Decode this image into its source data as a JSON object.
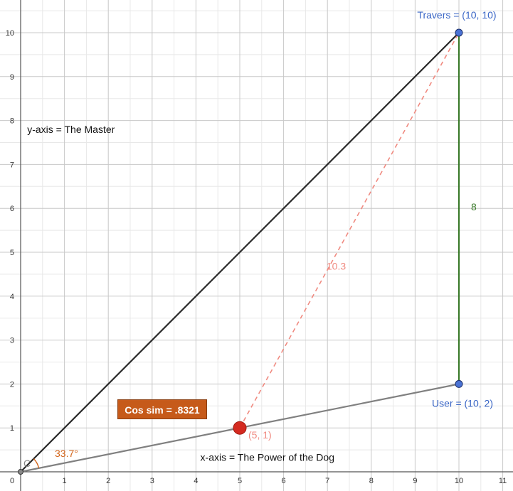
{
  "chart_data": {
    "type": "scatter",
    "xlim": [
      0,
      11
    ],
    "ylim": [
      0,
      10.5
    ],
    "grid": true,
    "x_ticks": [
      "0",
      "1",
      "2",
      "3",
      "4",
      "5",
      "6",
      "7",
      "8",
      "9",
      "10",
      "11"
    ],
    "y_ticks": [
      "1",
      "2",
      "3",
      "4",
      "5",
      "6",
      "7",
      "8",
      "9",
      "10"
    ],
    "xlabel": "x-axis = The Power of the Dog",
    "ylabel": "y-axis = The Master",
    "points": [
      {
        "label": "Travers = (10, 10)",
        "x": 10,
        "y": 10,
        "color": "#4a72d4"
      },
      {
        "label": "User = (10, 2)",
        "x": 10,
        "y": 2,
        "color": "#4a72d4"
      },
      {
        "label": "(5, 1)",
        "x": 5,
        "y": 1,
        "color": "#d42a20"
      },
      {
        "label": "C",
        "x": 0,
        "y": 0,
        "color": "#555555"
      }
    ],
    "segments": [
      {
        "from": [
          0,
          0
        ],
        "to": [
          10,
          10
        ],
        "color": "#2b2b2b",
        "style": "solid"
      },
      {
        "from": [
          0,
          0
        ],
        "to": [
          10,
          2
        ],
        "color": "#808080",
        "style": "solid"
      },
      {
        "from": [
          10,
          2
        ],
        "to": [
          10,
          10
        ],
        "color": "#3a7a2a",
        "style": "solid",
        "label": "8"
      },
      {
        "from": [
          5,
          1
        ],
        "to": [
          10,
          10
        ],
        "color": "#f08a80",
        "style": "dashed",
        "label": "10.3"
      }
    ],
    "angle": {
      "label": "33.7°",
      "color": "#d4651a"
    },
    "annotation": "Cos sim = .8321"
  }
}
